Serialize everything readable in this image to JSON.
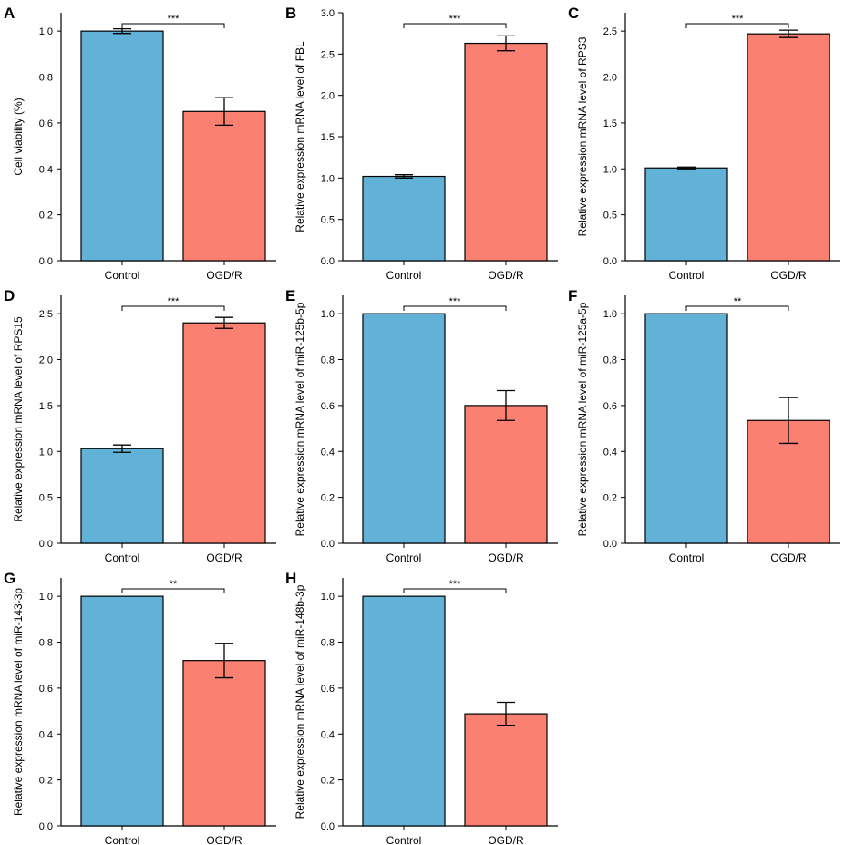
{
  "colors": {
    "control": "#62b2d8",
    "treatment": "#fa8072"
  },
  "chart_data": [
    {
      "panel": "A",
      "type": "bar",
      "categories": [
        "Control",
        "OGD/R"
      ],
      "values": [
        1.0,
        0.65
      ],
      "errors": [
        0.01,
        0.06
      ],
      "ylabel": "Cell viability (%)",
      "ylim": [
        0,
        1.08
      ],
      "yticks": [
        "0.0",
        "0.2",
        "0.4",
        "0.6",
        "0.8",
        "1.0"
      ],
      "significance": "***"
    },
    {
      "panel": "B",
      "type": "bar",
      "categories": [
        "Control",
        "OGD/R"
      ],
      "values": [
        1.02,
        2.63
      ],
      "errors": [
        0.02,
        0.09
      ],
      "ylabel": "Relative expression mRNA level of FBL",
      "ylim": [
        0,
        3.0
      ],
      "yticks": [
        "0.0",
        "0.5",
        "1.0",
        "1.5",
        "2.0",
        "2.5",
        "3.0"
      ],
      "significance": "***"
    },
    {
      "panel": "C",
      "type": "bar",
      "categories": [
        "Control",
        "OGD/R"
      ],
      "values": [
        1.01,
        2.47
      ],
      "errors": [
        0.01,
        0.04
      ],
      "ylabel": "Relative expression mRNA level of RPS3",
      "ylim": [
        0,
        2.7
      ],
      "yticks": [
        "0.0",
        "0.5",
        "1.0",
        "1.5",
        "2.0",
        "2.5"
      ],
      "significance": "***"
    },
    {
      "panel": "D",
      "type": "bar",
      "categories": [
        "Control",
        "OGD/R"
      ],
      "values": [
        1.03,
        2.4
      ],
      "errors": [
        0.04,
        0.06
      ],
      "ylabel": "Relative expression mRNA level of RPS15",
      "ylim": [
        0,
        2.7
      ],
      "yticks": [
        "0.0",
        "0.5",
        "1.0",
        "1.5",
        "2.0",
        "2.5"
      ],
      "significance": "***"
    },
    {
      "panel": "E",
      "type": "bar",
      "categories": [
        "Control",
        "OGD/R"
      ],
      "values": [
        1.0,
        0.6
      ],
      "errors": [
        0.0,
        0.065
      ],
      "ylabel": "Relative expression mRNA level of miR-125b-5p",
      "ylim": [
        0,
        1.08
      ],
      "yticks": [
        "0.0",
        "0.2",
        "0.4",
        "0.6",
        "0.8",
        "1.0"
      ],
      "significance": "***"
    },
    {
      "panel": "F",
      "type": "bar",
      "categories": [
        "Control",
        "OGD/R"
      ],
      "values": [
        1.0,
        0.535
      ],
      "errors": [
        0.0,
        0.1
      ],
      "ylabel": "Relative expression mRNA level of miR-125a-5p",
      "ylim": [
        0,
        1.08
      ],
      "yticks": [
        "0.0",
        "0.2",
        "0.4",
        "0.6",
        "0.8",
        "1.0"
      ],
      "significance": "**"
    },
    {
      "panel": "G",
      "type": "bar",
      "categories": [
        "Control",
        "OGD/R"
      ],
      "values": [
        1.0,
        0.72
      ],
      "errors": [
        0.0,
        0.075
      ],
      "ylabel": "Relative expression mRNA level of miR-143-3p",
      "ylim": [
        0,
        1.08
      ],
      "yticks": [
        "0.0",
        "0.2",
        "0.4",
        "0.6",
        "0.8",
        "1.0"
      ],
      "significance": "**"
    },
    {
      "panel": "H",
      "type": "bar",
      "categories": [
        "Control",
        "OGD/R"
      ],
      "values": [
        1.0,
        0.488
      ],
      "errors": [
        0.0,
        0.05
      ],
      "ylabel": "Relative expression mRNA level of miR-148b-3p",
      "ylim": [
        0,
        1.08
      ],
      "yticks": [
        "0.0",
        "0.2",
        "0.4",
        "0.6",
        "0.8",
        "1.0"
      ],
      "significance": "***"
    }
  ]
}
